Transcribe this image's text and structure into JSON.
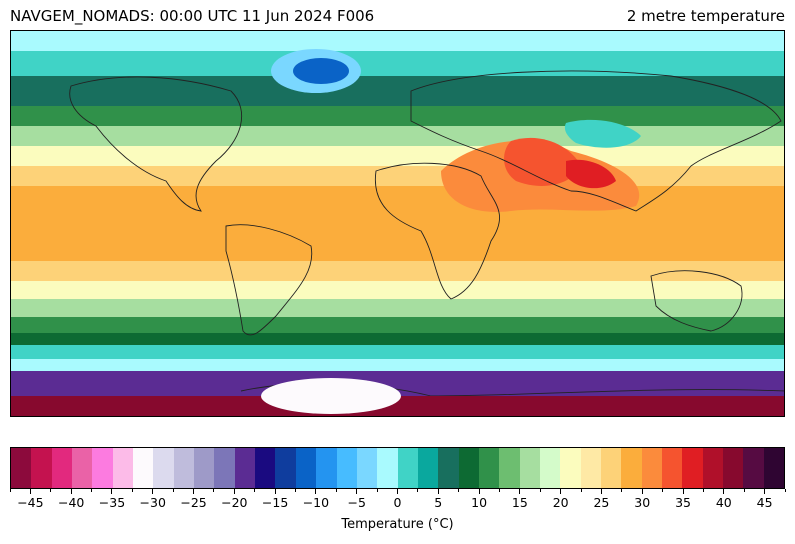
{
  "header": {
    "left_title": "NAVGEM_NOMADS: 00:00 UTC 11 Jun 2024 F006",
    "right_title": "2 metre temperature"
  },
  "map": {
    "projection": "equirectangular",
    "field": "2 metre temperature",
    "dominant_bands": [
      {
        "region": "Arctic ocean / north polar",
        "value_c": 0
      },
      {
        "region": "Greenland interior",
        "value_c": -10
      },
      {
        "region": "northern Eurasia / Canada",
        "value_c": 10
      },
      {
        "region": "mid-latitude north",
        "value_c": 20
      },
      {
        "region": "tropics ocean",
        "value_c": 27
      },
      {
        "region": "Sahara / Arabia / Pakistan",
        "value_c": 35
      },
      {
        "region": "southern mid-latitudes ocean",
        "value_c": 12
      },
      {
        "region": "southern ocean",
        "value_c": 0
      },
      {
        "region": "Antarctic coast",
        "value_c": -25
      },
      {
        "region": "Antarctic interior",
        "value_c": -45
      }
    ]
  },
  "colorbar": {
    "label": "Temperature (°C)",
    "colors": [
      "#8c0a3c",
      "#c4124f",
      "#e2297e",
      "#ea62a7",
      "#fc7be0",
      "#fcbbe8",
      "#fdfafd",
      "#dcdaee",
      "#bfbcdc",
      "#9e9ac8",
      "#7c76b8",
      "#5b2c93",
      "#1a0a80",
      "#0f3d9e",
      "#0a63c7",
      "#2494f0",
      "#47bcff",
      "#7ad7ff",
      "#a9fafe",
      "#40d3c6",
      "#0aa89e",
      "#186f5e",
      "#0d6a33",
      "#30914a",
      "#6dbe70",
      "#a6dea0",
      "#d4fbca",
      "#fbfcbe",
      "#fee9a5",
      "#fdd278",
      "#fbad3c",
      "#fb8b3c",
      "#f5542f",
      "#e01e23",
      "#b0102a",
      "#87092e",
      "#560b42",
      "#2f0532"
    ],
    "tick_labels": [
      "-45",
      "-40",
      "-35",
      "-30",
      "-25",
      "-20",
      "-15",
      "-10",
      "-5",
      "0",
      "5",
      "10",
      "15",
      "20",
      "25",
      "30",
      "35",
      "40",
      "45"
    ],
    "range": [
      -47.5,
      47.5
    ],
    "step": 2.5
  }
}
